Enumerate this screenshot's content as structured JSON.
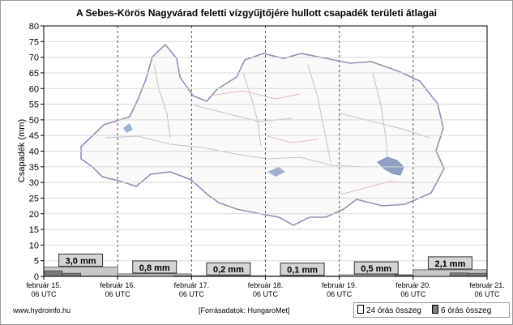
{
  "chart_data": {
    "type": "bar",
    "title": "A Sebes-Körös Nagyvárad feletti vízgyűjtőjére hullott csapadék területi átlagai",
    "ylabel": "Csapadék (mm)",
    "xlabel": "",
    "ylim": [
      0,
      80
    ],
    "y_ticks": [
      "0",
      "5",
      "10",
      "15",
      "20",
      "25",
      "30",
      "35",
      "40",
      "45",
      "50",
      "55",
      "60",
      "65",
      "70",
      "75",
      "80"
    ],
    "grid": true,
    "x_tick_labels": [
      {
        "date": "február 15.",
        "time": "06 UTC"
      },
      {
        "date": "február 16.",
        "time": "06 UTC"
      },
      {
        "date": "február 17.",
        "time": "06 UTC"
      },
      {
        "date": "február 18.",
        "time": "06 UTC"
      },
      {
        "date": "február 19.",
        "time": "06 UTC"
      },
      {
        "date": "február 20.",
        "time": "06 UTC"
      },
      {
        "date": "február 21.",
        "time": "06 UTC"
      }
    ],
    "series": [
      {
        "name": "24 órás összeg",
        "color": "#c8c8c8",
        "values": [
          3.0,
          0.8,
          0.2,
          0.1,
          0.5,
          2.1
        ],
        "labels": [
          "3,0 mm",
          "0,8 mm",
          "0,2 mm",
          "0,1 mm",
          "0,5 mm",
          "2,1 mm"
        ]
      },
      {
        "name": "6 órás összeg",
        "color": "#7a7a7a",
        "values": [
          1.8,
          1.0,
          0.1,
          0.1,
          0.1,
          0.0,
          0.0,
          0.2,
          0.0,
          0.0,
          0.0,
          0.1,
          0.0,
          0.0,
          0.0,
          0.0,
          0.0,
          0.0,
          0.0,
          0.5,
          0.0,
          0.0,
          1.1,
          1.0
        ]
      }
    ]
  },
  "footer": {
    "source_left": "www.hydroinfo.hu",
    "source_mid": "[Forrásadatok: HungaroMet]"
  },
  "legend": {
    "item_24h": "24 órás összeg",
    "item_6h": "6 órás összeg"
  }
}
